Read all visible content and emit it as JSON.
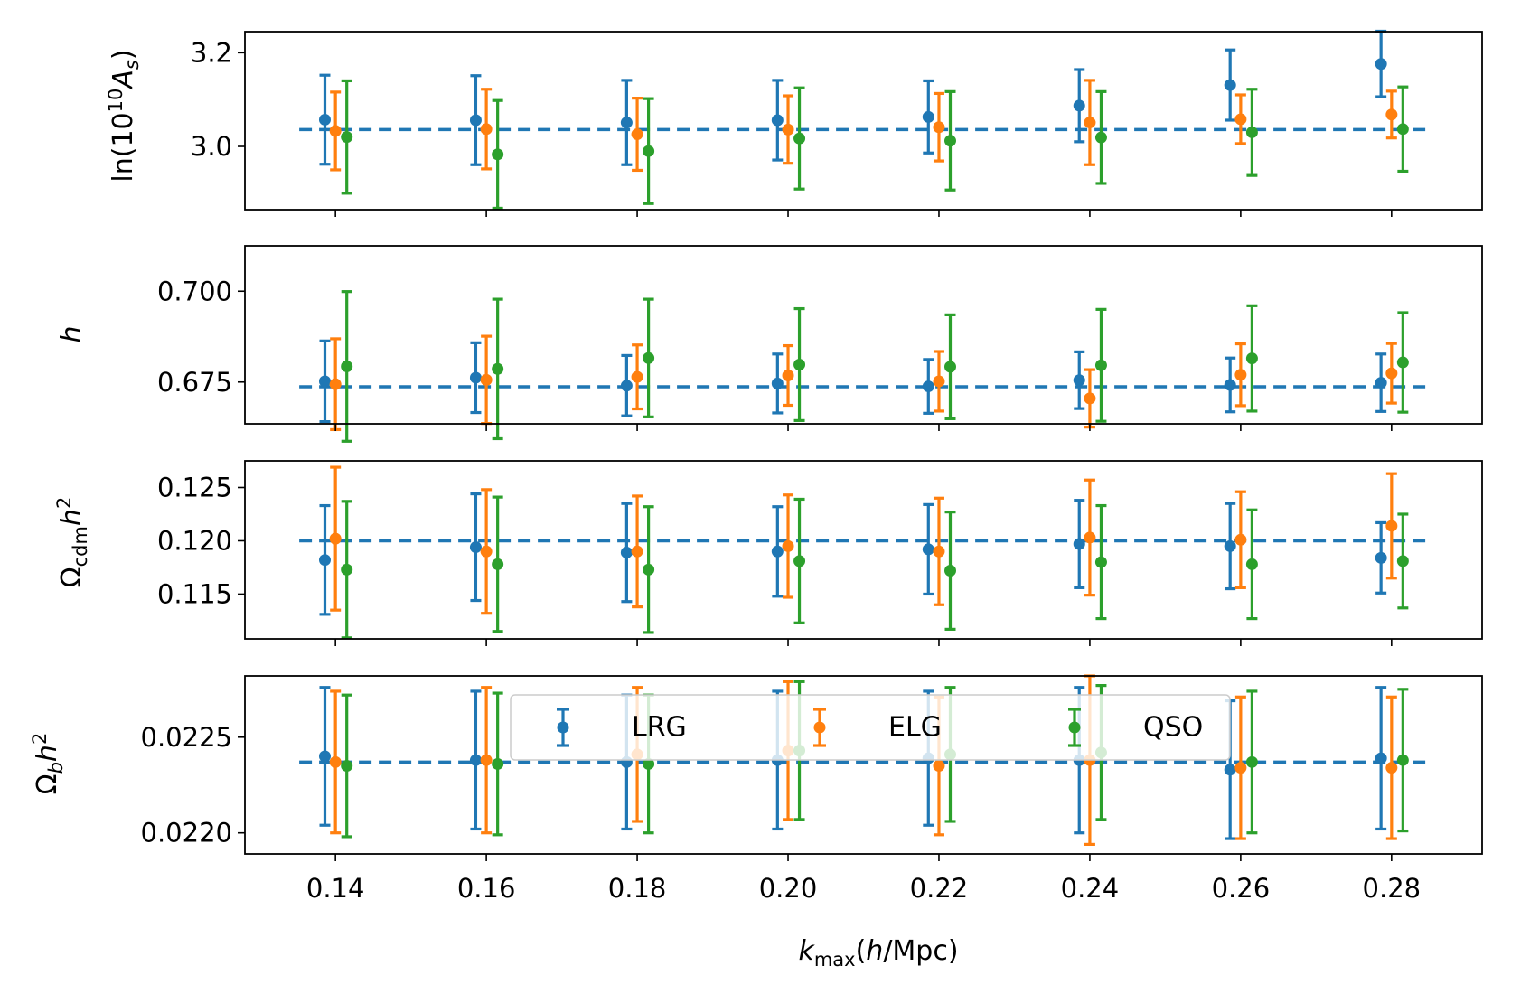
{
  "chart_data": {
    "type": "scatter",
    "title": "",
    "xlabel": "k_max(h/Mpc)",
    "xlim": [
      0.128,
      0.292
    ],
    "xticks": [
      0.14,
      0.16,
      0.18,
      0.2,
      0.22,
      0.24,
      0.26,
      0.28
    ],
    "xtick_labels": [
      "0.14",
      "0.16",
      "0.18",
      "0.20",
      "0.22",
      "0.24",
      "0.26",
      "0.28"
    ],
    "x_offsets": {
      "LRG": -0.0014,
      "ELG": 0.0,
      "QSO": 0.0015
    },
    "colors": {
      "LRG": "#1f77b4",
      "ELG": "#ff7f0e",
      "QSO": "#2ca02c"
    },
    "legend": {
      "placement": "upper-center of bottom panel",
      "entries": [
        "LRG",
        "ELG",
        "QSO"
      ]
    },
    "panels": [
      {
        "id": "lnAs",
        "ylabel": "ln(10^10 A_s)",
        "ylim": [
          2.865,
          3.245
        ],
        "yticks": [
          3.0,
          3.2
        ],
        "ytick_labels": [
          "3.0",
          "3.2"
        ],
        "reference": 3.036,
        "series": [
          {
            "name": "LRG",
            "values": [
              3.057,
              3.056,
              3.051,
              3.056,
              3.063,
              3.087,
              3.131,
              3.176
            ],
            "errors": [
              0.095,
              0.095,
              0.09,
              0.085,
              0.077,
              0.077,
              0.075,
              0.07
            ]
          },
          {
            "name": "ELG",
            "values": [
              3.033,
              3.037,
              3.026,
              3.036,
              3.041,
              3.051,
              3.058,
              3.068
            ],
            "errors": [
              0.083,
              0.085,
              0.077,
              0.072,
              0.072,
              0.09,
              0.052,
              0.05
            ]
          },
          {
            "name": "QSO",
            "values": [
              3.02,
              2.983,
              2.99,
              3.017,
              3.012,
              3.019,
              3.03,
              3.037
            ],
            "errors": [
              0.12,
              0.115,
              0.112,
              0.108,
              0.105,
              0.098,
              0.092,
              0.09
            ]
          }
        ]
      },
      {
        "id": "h",
        "ylabel": "h",
        "ylim": [
          0.6635,
          0.7125
        ],
        "yticks": [
          0.675,
          0.7
        ],
        "ytick_labels": [
          "0.675",
          "0.700"
        ],
        "reference": 0.6737,
        "series": [
          {
            "name": "LRG",
            "values": [
              0.6752,
              0.6762,
              0.674,
              0.6746,
              0.6738,
              0.6755,
              0.6742,
              0.6748
            ],
            "errors": [
              0.0111,
              0.0096,
              0.0083,
              0.0081,
              0.0074,
              0.0078,
              0.0074,
              0.0079
            ]
          },
          {
            "name": "ELG",
            "values": [
              0.6744,
              0.6756,
              0.6764,
              0.6768,
              0.6752,
              0.6705,
              0.677,
              0.6774
            ],
            "errors": [
              0.0125,
              0.012,
              0.0088,
              0.0082,
              0.0082,
              0.0079,
              0.0085,
              0.0082
            ]
          },
          {
            "name": "QSO",
            "values": [
              0.6793,
              0.6786,
              0.6816,
              0.6798,
              0.6792,
              0.6796,
              0.6815,
              0.6804
            ],
            "errors": [
              0.0206,
              0.0192,
              0.0162,
              0.0154,
              0.0143,
              0.0154,
              0.0145,
              0.0137
            ]
          }
        ]
      },
      {
        "id": "ocdm",
        "ylabel": "Omega_cdm h^2",
        "ylim": [
          0.1108,
          0.1275
        ],
        "yticks": [
          0.115,
          0.12,
          0.125
        ],
        "ytick_labels": [
          "0.115",
          "0.120",
          "0.125"
        ],
        "reference": 0.12,
        "series": [
          {
            "name": "LRG",
            "values": [
              0.1182,
              0.1194,
              0.1189,
              0.119,
              0.1192,
              0.1197,
              0.1195,
              0.1184
            ],
            "errors": [
              0.0051,
              0.005,
              0.0046,
              0.0042,
              0.0042,
              0.0041,
              0.004,
              0.0033
            ]
          },
          {
            "name": "ELG",
            "values": [
              0.1202,
              0.119,
              0.119,
              0.1195,
              0.119,
              0.1203,
              0.1201,
              0.1214
            ],
            "errors": [
              0.0067,
              0.0058,
              0.0052,
              0.0048,
              0.005,
              0.0054,
              0.0045,
              0.0049
            ]
          },
          {
            "name": "QSO",
            "values": [
              0.1173,
              0.1178,
              0.1173,
              0.1181,
              0.1172,
              0.118,
              0.1178,
              0.1181
            ],
            "errors": [
              0.0064,
              0.0063,
              0.0059,
              0.0058,
              0.0055,
              0.0053,
              0.0051,
              0.0044
            ]
          }
        ]
      },
      {
        "id": "ob",
        "ylabel": "Omega_b h^2",
        "ylim": [
          0.02189,
          0.02282
        ],
        "yticks": [
          0.022,
          0.0225
        ],
        "ytick_labels": [
          "0.0220",
          "0.0225"
        ],
        "reference": 0.02237,
        "series": [
          {
            "name": "LRG",
            "values": [
              0.0224,
              0.02238,
              0.02237,
              0.02238,
              0.02239,
              0.02238,
              0.02233,
              0.02239
            ],
            "errors": [
              0.00036,
              0.00036,
              0.00035,
              0.00036,
              0.00035,
              0.00038,
              0.00036,
              0.00037
            ]
          },
          {
            "name": "ELG",
            "values": [
              0.02237,
              0.02238,
              0.02241,
              0.02243,
              0.02235,
              0.02238,
              0.02234,
              0.02234
            ],
            "errors": [
              0.00037,
              0.00038,
              0.00035,
              0.00036,
              0.00036,
              0.00044,
              0.00037,
              0.00037
            ]
          },
          {
            "name": "QSO",
            "values": [
              0.02235,
              0.02236,
              0.02236,
              0.02243,
              0.02241,
              0.02242,
              0.02237,
              0.02238
            ],
            "errors": [
              0.00037,
              0.00037,
              0.00036,
              0.00036,
              0.00035,
              0.00035,
              0.00037,
              0.00037
            ]
          }
        ]
      }
    ]
  }
}
